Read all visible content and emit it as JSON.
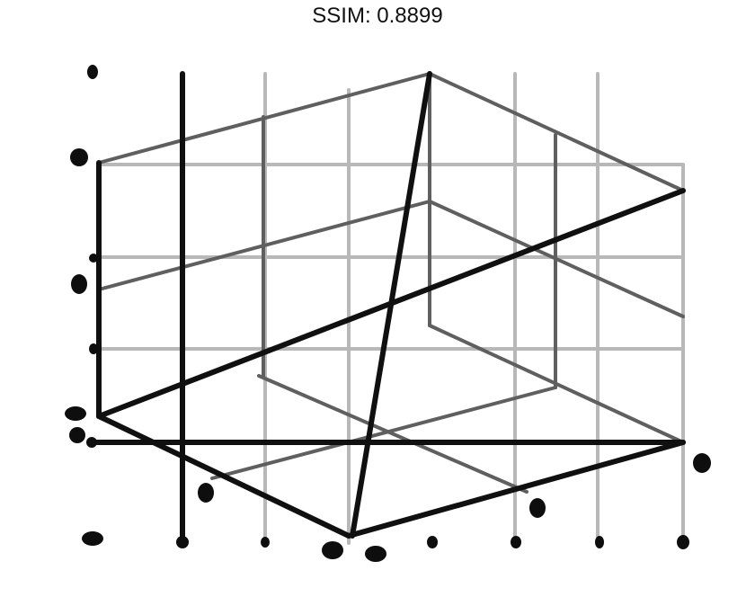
{
  "title": "SSIM: 0.8899",
  "colors": {
    "background": "#ffffff",
    "grid": "#b8b8b8",
    "box_edge": "#5f5f5f",
    "dark_edge": "#101010",
    "text": "#111111"
  }
}
